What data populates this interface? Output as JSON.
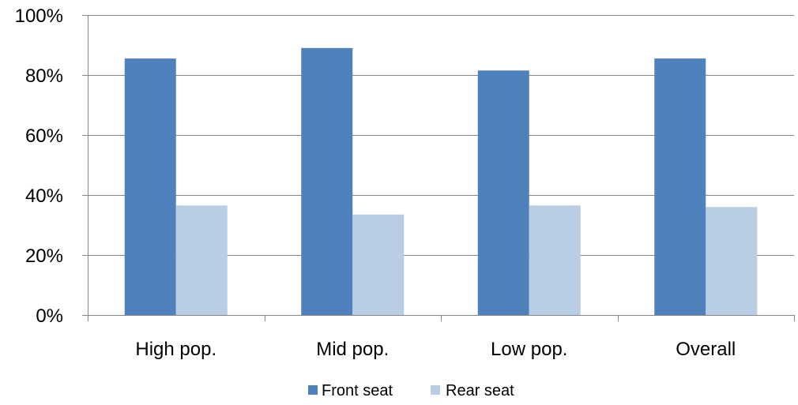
{
  "chart_data": {
    "type": "bar",
    "title": "",
    "xlabel": "",
    "ylabel": "",
    "categories": [
      "High pop.",
      "Mid pop.",
      "Low pop.",
      "Overall"
    ],
    "series": [
      {
        "name": "Front seat",
        "values": [
          85.5,
          89,
          81.5,
          85.5
        ],
        "color": "#4f81bd"
      },
      {
        "name": "Rear seat",
        "values": [
          36.5,
          33.5,
          36.5,
          36
        ],
        "color": "#b9cde5"
      }
    ],
    "ylim": [
      0,
      100
    ],
    "yticks": [
      {
        "value": 0,
        "label": "0%"
      },
      {
        "value": 20,
        "label": "20%"
      },
      {
        "value": 40,
        "label": "40%"
      },
      {
        "value": 60,
        "label": "60%"
      },
      {
        "value": 80,
        "label": "80%"
      },
      {
        "value": 100,
        "label": "100%"
      }
    ],
    "grid": true,
    "legend": "bottom"
  }
}
